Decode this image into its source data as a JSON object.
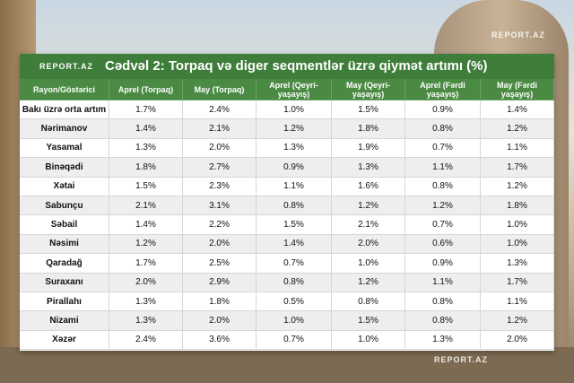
{
  "header": {
    "logo": "REPORT.AZ",
    "title": "Cədvəl 2: Torpaq və diger seqmentlər üzrə qiymət artımı (%)"
  },
  "watermarks": [
    "REPORT.AZ",
    "REPORT.AZ"
  ],
  "table": {
    "columns": [
      "Rayon/Göstərici",
      "Aprel (Torpaq)",
      "May (Torpaq)",
      "Aprel (Qeyri-yaşayış)",
      "May (Qeyri-yaşayış)",
      "Aprel (Fərdi yaşayış)",
      "May (Fərdi yaşayış)"
    ],
    "rows": [
      [
        "Bakı üzrə orta artım",
        "1.7%",
        "2.4%",
        "1.0%",
        "1.5%",
        "0.9%",
        "1.4%"
      ],
      [
        "Nərimanov",
        "1.4%",
        "2.1%",
        "1.2%",
        "1.8%",
        "0.8%",
        "1.2%"
      ],
      [
        "Yasamal",
        "1.3%",
        "2.0%",
        "1.3%",
        "1.9%",
        "0.7%",
        "1.1%"
      ],
      [
        "Binəqədi",
        "1.8%",
        "2.7%",
        "0.9%",
        "1.3%",
        "1.1%",
        "1.7%"
      ],
      [
        "Xətai",
        "1.5%",
        "2.3%",
        "1.1%",
        "1.6%",
        "0.8%",
        "1.2%"
      ],
      [
        "Sabunçu",
        "2.1%",
        "3.1%",
        "0.8%",
        "1.2%",
        "1.2%",
        "1.8%"
      ],
      [
        "Səbail",
        "1.4%",
        "2.2%",
        "1.5%",
        "2.1%",
        "0.7%",
        "1.0%"
      ],
      [
        "Nəsimi",
        "1.2%",
        "2.0%",
        "1.4%",
        "2.0%",
        "0.6%",
        "1.0%"
      ],
      [
        "Qaradağ",
        "1.7%",
        "2.5%",
        "0.7%",
        "1.0%",
        "0.9%",
        "1.3%"
      ],
      [
        "Suraxanı",
        "2.0%",
        "2.9%",
        "0.8%",
        "1.2%",
        "1.1%",
        "1.7%"
      ],
      [
        "Pirallahı",
        "1.3%",
        "1.8%",
        "0.5%",
        "0.8%",
        "0.8%",
        "1.1%"
      ],
      [
        "Nizami",
        "1.3%",
        "2.0%",
        "1.0%",
        "1.5%",
        "0.8%",
        "1.2%"
      ],
      [
        "Xəzər",
        "2.4%",
        "3.6%",
        "0.7%",
        "1.0%",
        "1.3%",
        "2.0%"
      ]
    ]
  }
}
